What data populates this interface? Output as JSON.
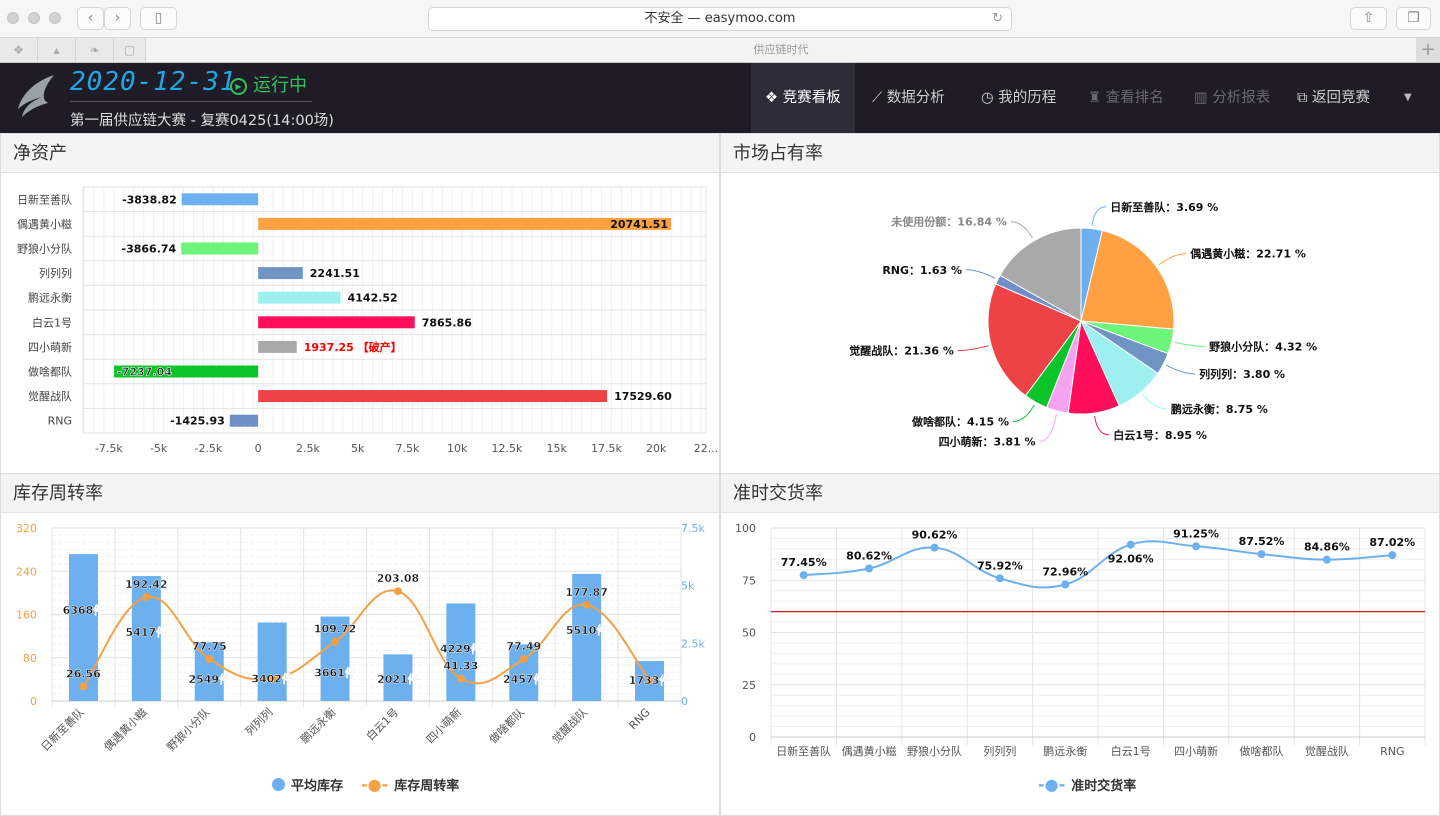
{
  "browser": {
    "address": "不安全 — easymoo.com",
    "tab_title": "供应链时代"
  },
  "header": {
    "date": "2020-12-31",
    "status": "运行中",
    "subtitle": "第一届供应链大赛 - 复赛0425(14:00场)",
    "nav": [
      {
        "label": "竞赛看板",
        "icon": "diamonds-icon",
        "active": true
      },
      {
        "label": "数据分析",
        "icon": "chart-line-icon"
      },
      {
        "label": "我的历程",
        "icon": "history-icon"
      },
      {
        "label": "查看排名",
        "icon": "trophy-icon",
        "disabled": true
      },
      {
        "label": "分析报表",
        "icon": "bar-chart-icon",
        "disabled": true
      },
      {
        "label": "返回竞赛",
        "icon": "external-link-icon"
      }
    ]
  },
  "panels": {
    "net_assets": "净资产",
    "market_share": "市场占有率",
    "inventory_turnover": "库存周转率",
    "on_time_delivery": "准时交货率"
  },
  "chart_data": [
    {
      "id": "net_assets",
      "type": "bar",
      "orientation": "horizontal",
      "categories": [
        "日新至善队",
        "偶遇黄小糍",
        "野狼小分队",
        "列列列",
        "鹏远永衡",
        "白云1号",
        "四小萌新",
        "做啥都队",
        "觉醒战队",
        "RNG"
      ],
      "values": [
        -3838.82,
        20741.51,
        -3866.74,
        2241.51,
        4142.52,
        7865.86,
        1937.25,
        -7237.04,
        17529.6,
        -1425.93
      ],
      "value_labels": [
        "-3838.82",
        "20741.51",
        "-3866.74",
        "2241.51",
        "4142.52",
        "7865.86",
        "1937.25 【破产】",
        "-7237.04",
        "17529.60",
        "-1425.93"
      ],
      "colors": [
        "#6cb0f0",
        "#ffa143",
        "#6cf578",
        "#7094c4",
        "#9ef0f0",
        "#ff0f5b",
        "#a9a9a9",
        "#0ac42a",
        "#ee4346",
        "#6f8fc8"
      ],
      "highlight_color": "#ff0000",
      "xticks": [
        "-7.5k",
        "-5k",
        "-2.5k",
        "0",
        "2.5k",
        "5k",
        "7.5k",
        "10k",
        "12.5k",
        "15k",
        "17.5k",
        "20k",
        "22..."
      ],
      "xtick_values": [
        -7500,
        -5000,
        -2500,
        0,
        2500,
        5000,
        7500,
        10000,
        12500,
        15000,
        17500,
        20000,
        22500
      ],
      "xlim": [
        -8800,
        22500
      ],
      "grid": true
    },
    {
      "id": "market_share",
      "type": "pie",
      "labels": [
        "日新至善队",
        "偶遇黄小糍",
        "野狼小分队",
        "列列列",
        "鹏远永衡",
        "白云1号",
        "四小萌新",
        "做啥都队",
        "觉醒战队",
        "RNG",
        "未使用份额"
      ],
      "values": [
        3.69,
        22.71,
        4.32,
        3.8,
        8.75,
        8.95,
        3.81,
        4.15,
        21.36,
        1.63,
        16.84
      ],
      "value_labels": [
        "3.69 %",
        "22.71 %",
        "4.32 %",
        "3.80 %",
        "8.75 %",
        "8.95 %",
        "3.81 %",
        "4.15 %",
        "21.36 %",
        "1.63 %",
        "16.84 %"
      ],
      "colors": [
        "#6cb0f0",
        "#ffa143",
        "#6cf578",
        "#7094c4",
        "#9ef0f0",
        "#ff0f5b",
        "#f5a3f0",
        "#0ac42a",
        "#ee4346",
        "#6f8fc8",
        "#a9a9a9"
      ]
    },
    {
      "id": "inventory_turnover",
      "type": "bar+line",
      "categories": [
        "日新至善队",
        "偶遇黄小糍",
        "野狼小分队",
        "列列列",
        "鹏远永衡",
        "白云1号",
        "四小萌新",
        "做啥都队",
        "觉醒战队",
        "RNG"
      ],
      "series": [
        {
          "name": "平均库存",
          "type": "bar",
          "axis": "right",
          "values": [
            6368,
            5417,
            2549,
            3402,
            3661,
            2021,
            4229,
            2457,
            5510,
            1733
          ],
          "value_labels": [
            "6368件",
            "5417件",
            "2549件",
            "3402件",
            "3661件",
            "2021件",
            "4229件",
            "2457件",
            "5510件",
            "1733件"
          ],
          "color": "#6cb0f0"
        },
        {
          "name": "库存周转率",
          "type": "line",
          "axis": "left",
          "values": [
            26.56,
            192.42,
            77.75,
            41.0,
            109.72,
            203.08,
            41.33,
            77.49,
            177.87,
            38.0
          ],
          "value_labels": [
            "26.56",
            "192.42",
            "77.75",
            "",
            "109.72",
            "203.08",
            "41.33",
            "77.49",
            "177.87",
            ""
          ],
          "color": "#f5a045"
        }
      ],
      "yleft": {
        "ticks": [
          "0",
          "80",
          "160",
          "240",
          "320"
        ],
        "lim": [
          0,
          320
        ],
        "color": "#f5a045"
      },
      "yright": {
        "ticks": [
          "0",
          "2.5k",
          "5k",
          "7.5k"
        ],
        "lim": [
          0,
          7500
        ],
        "color": "#6cb0f0"
      },
      "legend": "bottom"
    },
    {
      "id": "on_time_delivery",
      "type": "line",
      "smooth": true,
      "categories": [
        "日新至善队",
        "偶遇黄小糍",
        "野狼小分队",
        "列列列",
        "鹏远永衡",
        "白云1号",
        "四小萌新",
        "做啥都队",
        "觉醒战队",
        "RNG"
      ],
      "series": [
        {
          "name": "准时交货率",
          "values": [
            77.45,
            80.62,
            90.62,
            75.92,
            72.96,
            92.06,
            91.25,
            87.52,
            84.86,
            87.02
          ],
          "value_labels": [
            "77.45%",
            "80.62%",
            "90.62%",
            "75.92%",
            "72.96%",
            "92.06%",
            "91.25%",
            "87.52%",
            "84.86%",
            "87.02%"
          ],
          "color": "#6cb0f0"
        }
      ],
      "yticks": [
        "0",
        "25",
        "50",
        "75",
        "100"
      ],
      "ylim": [
        0,
        100
      ],
      "reference_line": {
        "value": 60,
        "color": "#d0191b"
      },
      "legend": "bottom"
    }
  ]
}
